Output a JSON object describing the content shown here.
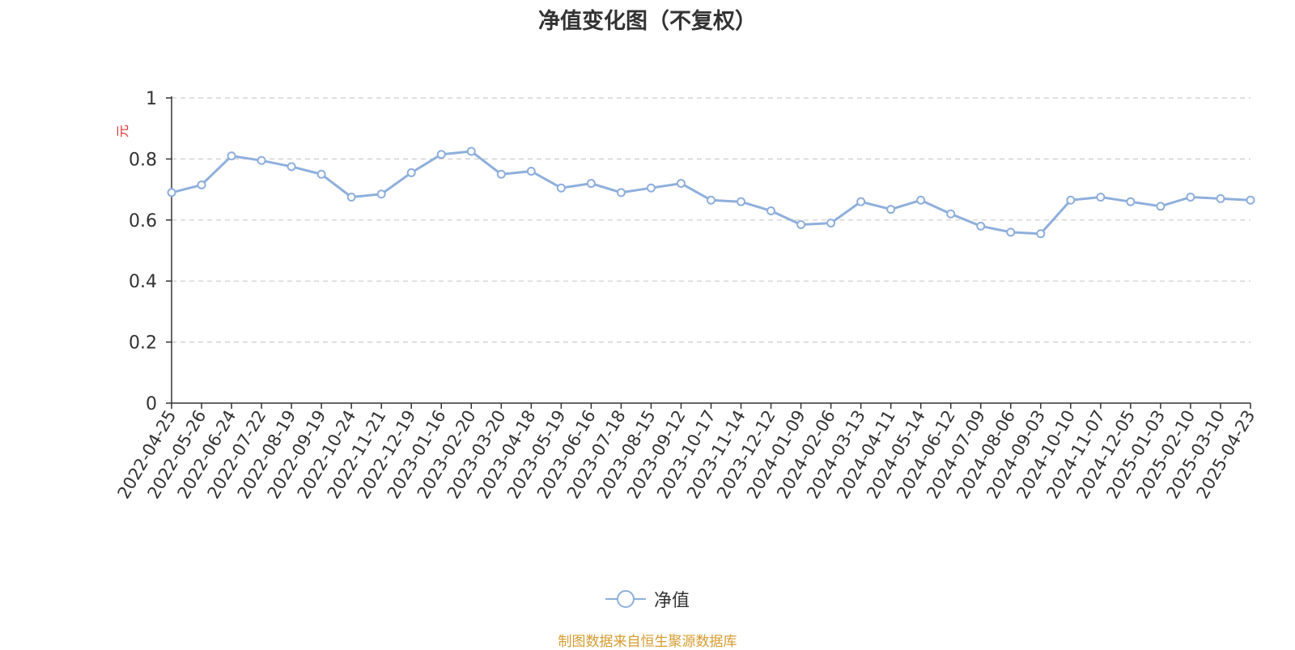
{
  "chart_data": {
    "type": "line",
    "title": "净值变化图（不复权）",
    "ylabel": "元",
    "ylim": [
      0,
      1
    ],
    "yticks": [
      "0",
      "0.2",
      "0.4",
      "0.6",
      "0.8",
      "1"
    ],
    "grid": true,
    "legend_position": "bottom-center",
    "colors": {
      "line": "#8eafdc",
      "marker_fill": "#ffffff",
      "ylabel": "#e03030",
      "grid": "#cccccc",
      "axis": "#333333",
      "note": "#d59b2f"
    },
    "x": [
      "2022-04-25",
      "2022-05-26",
      "2022-06-24",
      "2022-07-22",
      "2022-08-19",
      "2022-09-19",
      "2022-10-24",
      "2022-11-21",
      "2022-12-19",
      "2023-01-16",
      "2023-02-20",
      "2023-03-20",
      "2023-04-18",
      "2023-05-19",
      "2023-06-16",
      "2023-07-18",
      "2023-08-15",
      "2023-09-12",
      "2023-10-17",
      "2023-11-14",
      "2023-12-12",
      "2024-01-09",
      "2024-02-06",
      "2024-03-13",
      "2024-04-11",
      "2024-05-14",
      "2024-06-12",
      "2024-07-09",
      "2024-08-06",
      "2024-09-03",
      "2024-10-10",
      "2024-11-07",
      "2024-12-05",
      "2025-01-03",
      "2025-02-10",
      "2025-03-10",
      "2025-04-23"
    ],
    "series": [
      {
        "name": "净值",
        "values": [
          0.69,
          0.715,
          0.81,
          0.795,
          0.775,
          0.75,
          0.675,
          0.685,
          0.755,
          0.815,
          0.825,
          0.75,
          0.76,
          0.705,
          0.72,
          0.69,
          0.705,
          0.72,
          0.665,
          0.66,
          0.63,
          0.585,
          0.59,
          0.66,
          0.635,
          0.665,
          0.62,
          0.58,
          0.56,
          0.555,
          0.665,
          0.675,
          0.66,
          0.645,
          0.675,
          0.67,
          0.665
        ]
      }
    ]
  },
  "legend": {
    "label": "净值"
  },
  "source_note": "制图数据来自恒生聚源数据库"
}
